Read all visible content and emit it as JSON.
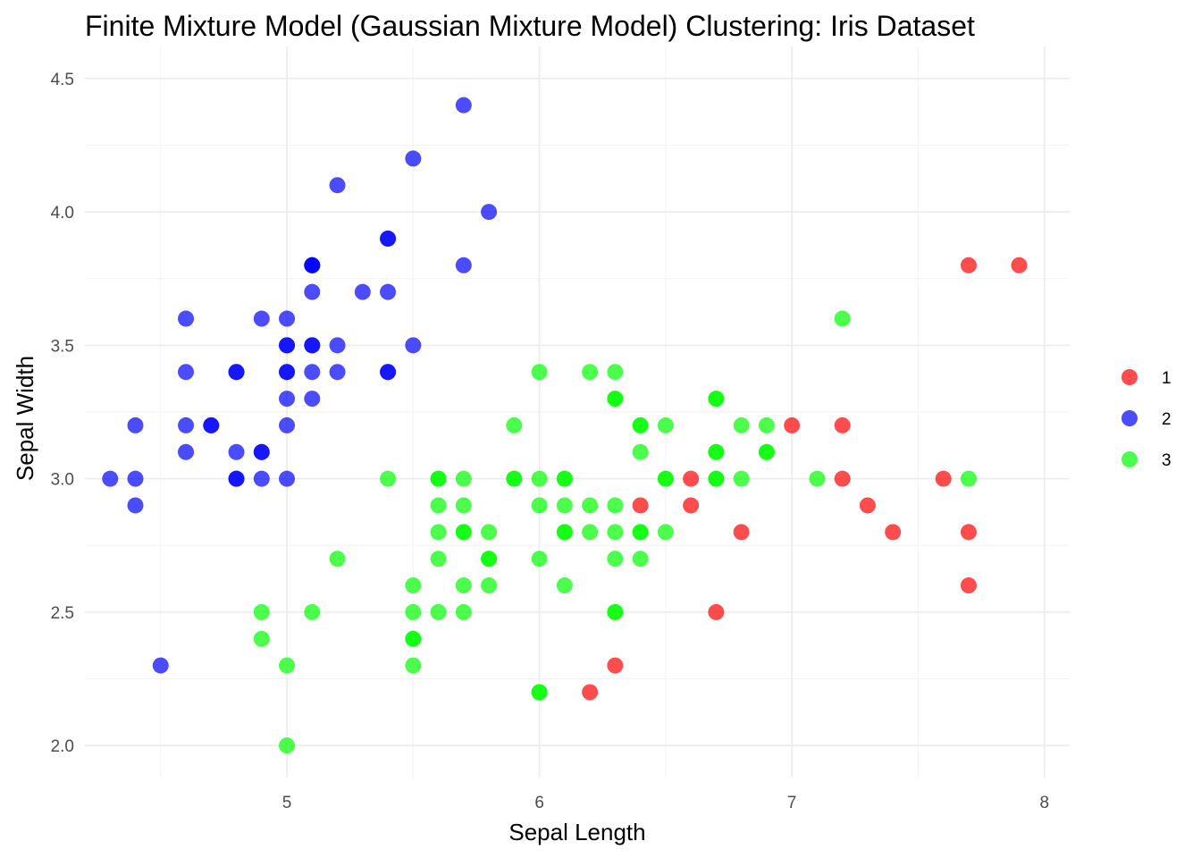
{
  "chart_data": {
    "type": "scatter",
    "title": "Finite Mixture Model (Gaussian Mixture Model) Clustering: Iris Dataset",
    "xlabel": "Sepal Length",
    "ylabel": "Sepal Width",
    "xlim": [
      4.2,
      8.1
    ],
    "ylim": [
      1.88,
      4.62
    ],
    "x_ticks": [
      5,
      6,
      7,
      8
    ],
    "x_tick_labels": [
      "5",
      "6",
      "7",
      "8"
    ],
    "y_ticks": [
      2.0,
      2.5,
      3.0,
      3.5,
      4.0,
      4.5
    ],
    "y_tick_labels": [
      "2.0",
      "2.5",
      "3.0",
      "3.5",
      "4.0",
      "4.5"
    ],
    "grid": true,
    "legend_position": "right",
    "point_alpha": 0.7,
    "series": [
      {
        "name": "1",
        "color": "#ff0000",
        "points": [
          [
            7.7,
            3.8
          ],
          [
            7.9,
            3.8
          ],
          [
            7.0,
            3.2
          ],
          [
            7.2,
            3.2
          ],
          [
            7.2,
            3.0
          ],
          [
            7.6,
            3.0
          ],
          [
            6.6,
            3.0
          ],
          [
            6.4,
            2.9
          ],
          [
            6.6,
            2.9
          ],
          [
            7.3,
            2.9
          ],
          [
            6.8,
            2.8
          ],
          [
            7.4,
            2.8
          ],
          [
            7.7,
            2.8
          ],
          [
            7.7,
            2.6
          ],
          [
            6.7,
            2.5
          ],
          [
            6.3,
            2.3
          ],
          [
            6.2,
            2.2
          ]
        ]
      },
      {
        "name": "2",
        "color": "#0000ff",
        "points": [
          [
            5.7,
            4.4
          ],
          [
            5.5,
            4.2
          ],
          [
            5.2,
            4.1
          ],
          [
            5.8,
            4.0
          ],
          [
            5.4,
            3.9
          ],
          [
            5.4,
            3.9
          ],
          [
            5.1,
            3.8
          ],
          [
            5.1,
            3.8
          ],
          [
            5.1,
            3.8
          ],
          [
            5.7,
            3.8
          ],
          [
            5.1,
            3.7
          ],
          [
            5.3,
            3.7
          ],
          [
            5.4,
            3.7
          ],
          [
            4.6,
            3.6
          ],
          [
            4.9,
            3.6
          ],
          [
            5.0,
            3.6
          ],
          [
            5.0,
            3.5
          ],
          [
            5.0,
            3.5
          ],
          [
            5.1,
            3.5
          ],
          [
            5.1,
            3.5
          ],
          [
            5.2,
            3.5
          ],
          [
            5.5,
            3.5
          ],
          [
            4.6,
            3.4
          ],
          [
            4.8,
            3.4
          ],
          [
            4.8,
            3.4
          ],
          [
            5.0,
            3.4
          ],
          [
            5.0,
            3.4
          ],
          [
            5.1,
            3.4
          ],
          [
            5.2,
            3.4
          ],
          [
            5.4,
            3.4
          ],
          [
            5.4,
            3.4
          ],
          [
            5.0,
            3.3
          ],
          [
            5.1,
            3.3
          ],
          [
            4.4,
            3.2
          ],
          [
            4.6,
            3.2
          ],
          [
            4.7,
            3.2
          ],
          [
            4.7,
            3.2
          ],
          [
            5.0,
            3.2
          ],
          [
            4.6,
            3.1
          ],
          [
            4.8,
            3.1
          ],
          [
            4.9,
            3.1
          ],
          [
            4.9,
            3.1
          ],
          [
            4.3,
            3.0
          ],
          [
            4.4,
            3.0
          ],
          [
            4.8,
            3.0
          ],
          [
            4.8,
            3.0
          ],
          [
            4.9,
            3.0
          ],
          [
            5.0,
            3.0
          ],
          [
            4.4,
            2.9
          ],
          [
            4.5,
            2.3
          ]
        ]
      },
      {
        "name": "3",
        "color": "#00ff00",
        "points": [
          [
            7.2,
            3.6
          ],
          [
            6.0,
            3.4
          ],
          [
            6.2,
            3.4
          ],
          [
            6.3,
            3.4
          ],
          [
            6.3,
            3.3
          ],
          [
            6.3,
            3.3
          ],
          [
            6.7,
            3.3
          ],
          [
            6.7,
            3.3
          ],
          [
            5.9,
            3.2
          ],
          [
            6.4,
            3.2
          ],
          [
            6.4,
            3.2
          ],
          [
            6.5,
            3.2
          ],
          [
            6.8,
            3.2
          ],
          [
            6.9,
            3.2
          ],
          [
            6.4,
            3.1
          ],
          [
            6.7,
            3.1
          ],
          [
            6.7,
            3.1
          ],
          [
            6.9,
            3.1
          ],
          [
            6.9,
            3.1
          ],
          [
            5.4,
            3.0
          ],
          [
            5.6,
            3.0
          ],
          [
            5.6,
            3.0
          ],
          [
            5.7,
            3.0
          ],
          [
            5.9,
            3.0
          ],
          [
            5.9,
            3.0
          ],
          [
            6.0,
            3.0
          ],
          [
            6.1,
            3.0
          ],
          [
            6.1,
            3.0
          ],
          [
            6.5,
            3.0
          ],
          [
            6.5,
            3.0
          ],
          [
            6.7,
            3.0
          ],
          [
            6.7,
            3.0
          ],
          [
            6.8,
            3.0
          ],
          [
            7.1,
            3.0
          ],
          [
            7.7,
            3.0
          ],
          [
            5.6,
            2.9
          ],
          [
            5.7,
            2.9
          ],
          [
            6.0,
            2.9
          ],
          [
            6.1,
            2.9
          ],
          [
            6.2,
            2.9
          ],
          [
            6.3,
            2.9
          ],
          [
            5.6,
            2.8
          ],
          [
            5.7,
            2.8
          ],
          [
            5.7,
            2.8
          ],
          [
            5.8,
            2.8
          ],
          [
            6.1,
            2.8
          ],
          [
            6.1,
            2.8
          ],
          [
            6.2,
            2.8
          ],
          [
            6.3,
            2.8
          ],
          [
            6.4,
            2.8
          ],
          [
            6.4,
            2.8
          ],
          [
            6.5,
            2.8
          ],
          [
            5.2,
            2.7
          ],
          [
            5.6,
            2.7
          ],
          [
            5.8,
            2.7
          ],
          [
            5.8,
            2.7
          ],
          [
            6.0,
            2.7
          ],
          [
            6.3,
            2.7
          ],
          [
            6.4,
            2.7
          ],
          [
            5.5,
            2.6
          ],
          [
            5.7,
            2.6
          ],
          [
            5.8,
            2.6
          ],
          [
            6.1,
            2.6
          ],
          [
            4.9,
            2.5
          ],
          [
            5.1,
            2.5
          ],
          [
            5.5,
            2.5
          ],
          [
            5.6,
            2.5
          ],
          [
            5.7,
            2.5
          ],
          [
            6.3,
            2.5
          ],
          [
            6.3,
            2.5
          ],
          [
            4.9,
            2.4
          ],
          [
            5.5,
            2.4
          ],
          [
            5.5,
            2.4
          ],
          [
            5.0,
            2.3
          ],
          [
            5.5,
            2.3
          ],
          [
            6.0,
            2.2
          ],
          [
            6.0,
            2.2
          ],
          [
            5.0,
            2.0
          ]
        ]
      }
    ]
  }
}
